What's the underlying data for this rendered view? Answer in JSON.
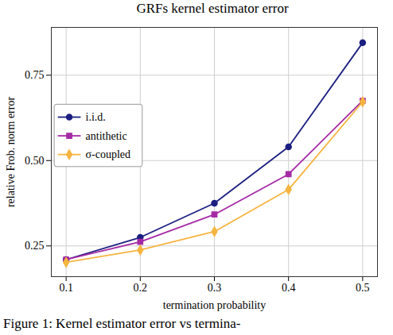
{
  "chart_data": {
    "type": "line",
    "title": "GRFs kernel estimator error",
    "caption": "Figure 1: Kernel estimator error vs termina-",
    "xlabel": "termination probability",
    "ylabel": "relative Frob. norm error",
    "x": [
      0.1,
      0.2,
      0.3,
      0.4,
      0.5
    ],
    "series": [
      {
        "name": "i.i.d.",
        "color": "#1b1f80",
        "marker": "circle",
        "values": [
          0.21,
          0.275,
          0.375,
          0.54,
          0.845
        ]
      },
      {
        "name": "antithetic",
        "color": "#a52aa5",
        "marker": "square",
        "values": [
          0.21,
          0.262,
          0.342,
          0.46,
          0.675
        ]
      },
      {
        "name": "σ-coupled",
        "color": "#f5b440",
        "marker": "diamond",
        "values": [
          0.202,
          0.238,
          0.292,
          0.415,
          0.672
        ]
      }
    ],
    "xlim": [
      0.08,
      0.52
    ],
    "xticks": [
      0.1,
      0.2,
      0.3,
      0.4,
      0.5
    ],
    "ylim": [
      0.16,
      0.89
    ],
    "yticks": [
      0.25,
      {
        "value": 0.5,
        "label": "0.50"
      },
      0.75
    ],
    "grid": true,
    "legend": "left"
  }
}
